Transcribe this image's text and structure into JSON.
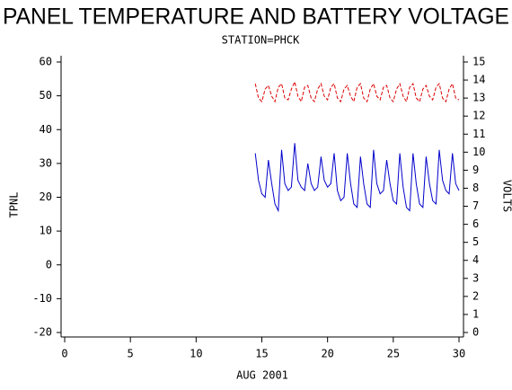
{
  "chart_data": {
    "type": "line",
    "title": "PANEL TEMPERATURE AND BATTERY VOLTAGE",
    "subtitle": "STATION=PHCK",
    "xlabel": "AUG 2001",
    "ylabel": "TPNL",
    "y2label": "VOLTS",
    "x": [
      14.5,
      14.75,
      15,
      15.25,
      15.5,
      15.75,
      16,
      16.25,
      16.5,
      16.75,
      17,
      17.25,
      17.5,
      17.75,
      18,
      18.25,
      18.5,
      18.75,
      19,
      19.25,
      19.5,
      19.75,
      20,
      20.25,
      20.5,
      20.75,
      21,
      21.25,
      21.5,
      21.75,
      22,
      22.25,
      22.5,
      22.75,
      23,
      23.25,
      23.5,
      23.75,
      24,
      24.25,
      24.5,
      24.75,
      25,
      25.25,
      25.5,
      25.75,
      26,
      26.25,
      26.5,
      26.75,
      27,
      27.25,
      27.5,
      27.75,
      28,
      28.25,
      28.5,
      28.75,
      29,
      29.25,
      29.5,
      29.75,
      30
    ],
    "series": [
      {
        "name": "TPNL",
        "color": "#0000cc",
        "axis": "y",
        "values": [
          33,
          25,
          21,
          20,
          31,
          24,
          18,
          16,
          34,
          24,
          22,
          23,
          36,
          25,
          23,
          22,
          30,
          24,
          22,
          23,
          32,
          25,
          23,
          24,
          33,
          22,
          19,
          20,
          33,
          24,
          18,
          17,
          32,
          24,
          18,
          17,
          34,
          24,
          21,
          22,
          31,
          24,
          19,
          18,
          33,
          23,
          17,
          16,
          33,
          24,
          18,
          17,
          32,
          24,
          19,
          18,
          34,
          25,
          22,
          21,
          33,
          24,
          22
        ]
      },
      {
        "name": "VOLTS",
        "color": "#dd0000",
        "axis": "y2",
        "dashed": true,
        "values": [
          13.8,
          13.0,
          12.8,
          13.5,
          13.7,
          13.1,
          12.8,
          13.6,
          13.8,
          13.0,
          12.9,
          13.5,
          13.9,
          13.1,
          12.8,
          13.6,
          13.7,
          13.0,
          12.8,
          13.5,
          13.8,
          13.1,
          12.9,
          13.6,
          13.8,
          13.0,
          12.8,
          13.5,
          13.7,
          13.1,
          12.8,
          13.6,
          13.8,
          13.0,
          12.8,
          13.5,
          13.8,
          13.1,
          12.9,
          13.6,
          13.7,
          13.0,
          12.8,
          13.5,
          13.8,
          13.1,
          12.8,
          13.6,
          13.8,
          13.0,
          12.8,
          13.5,
          13.7,
          13.1,
          12.9,
          13.6,
          13.8,
          13.0,
          12.8,
          13.5,
          13.8,
          13.0,
          12.9
        ]
      }
    ],
    "xlim": [
      0,
      30
    ],
    "xticks": [
      0,
      5,
      10,
      15,
      20,
      25,
      30
    ],
    "ylim": [
      -20,
      60
    ],
    "yticks": [
      -20,
      -10,
      0,
      10,
      20,
      30,
      40,
      50,
      60
    ],
    "y2lim": [
      0,
      15
    ],
    "y2ticks": [
      0,
      1,
      2,
      3,
      4,
      5,
      6,
      7,
      8,
      9,
      10,
      11,
      12,
      13,
      14,
      15
    ],
    "grid": false
  }
}
